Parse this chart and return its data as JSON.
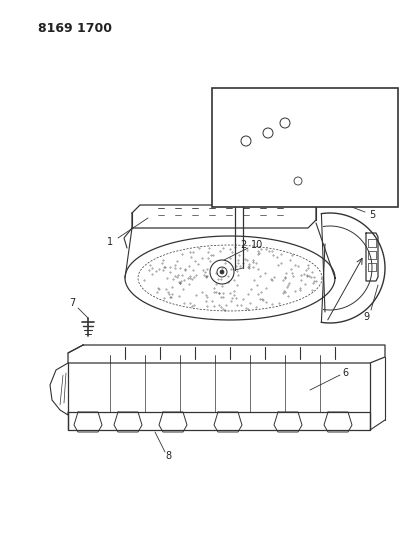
{
  "title": "8169 1700",
  "bg_color": "#ffffff",
  "line_color": "#333333",
  "label_color": "#222222",
  "fig_width": 4.11,
  "fig_height": 5.33,
  "dpi": 100
}
